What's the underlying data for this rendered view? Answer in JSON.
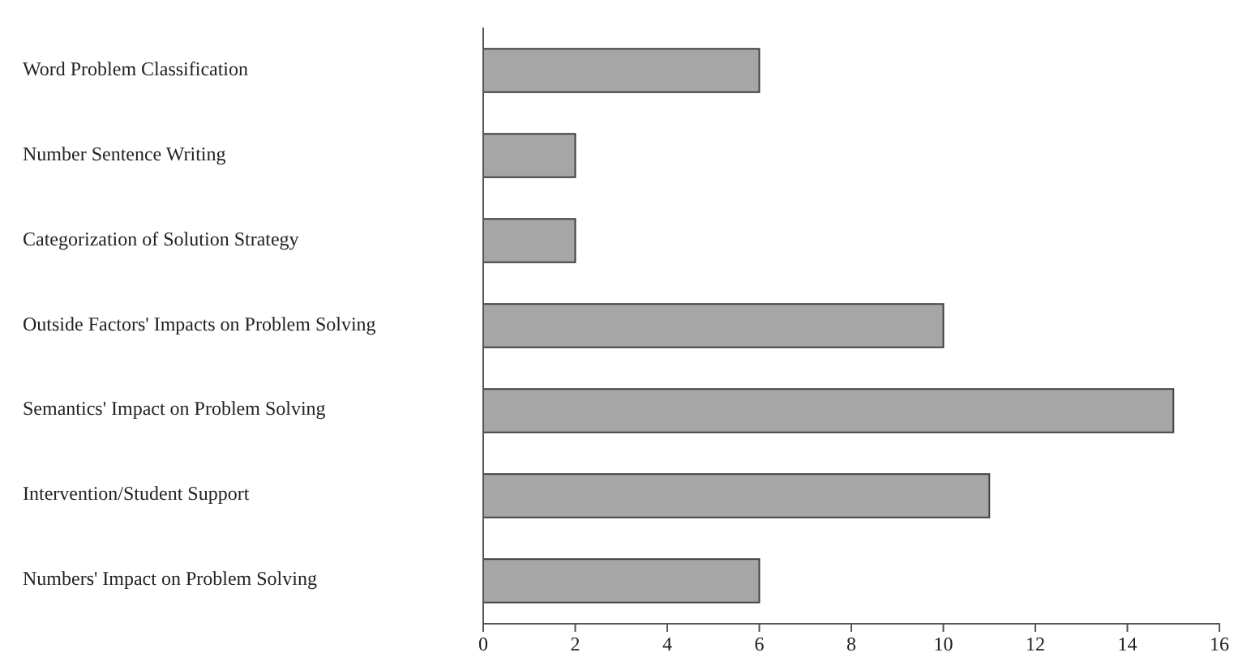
{
  "chart_data": {
    "type": "bar",
    "orientation": "horizontal",
    "categories": [
      "Word Problem Classification",
      "Number Sentence Writing",
      "Categorization of Solution Strategy",
      "Outside Factors' Impacts on Problem Solving",
      "Semantics' Impact on Problem Solving",
      "Intervention/Student Support",
      "Numbers' Impact on Problem Solving"
    ],
    "values": [
      6,
      2,
      2,
      10,
      15,
      11,
      6
    ],
    "color": "#a6a6a6",
    "xlim": [
      0,
      16
    ],
    "xticks": [
      0,
      2,
      4,
      6,
      8,
      10,
      12,
      14,
      16
    ]
  }
}
